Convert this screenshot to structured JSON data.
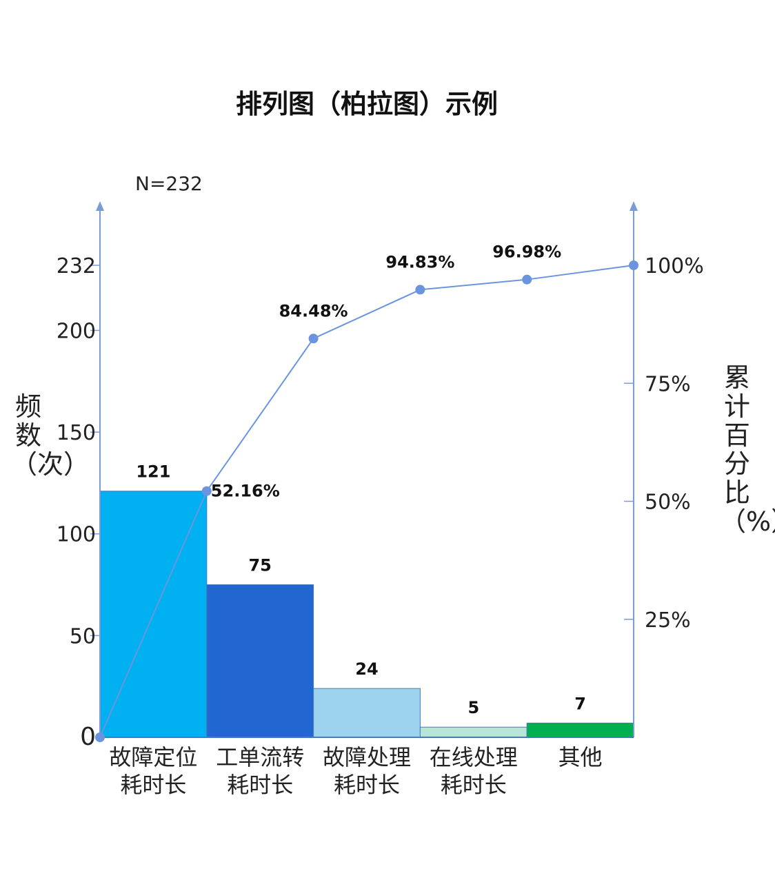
{
  "chart_data": {
    "type": "bar+line",
    "title": "排列图（柏拉图）示例",
    "annotation": "N=232",
    "ylabel_left": "频数（次）",
    "ylabel_right": "累计百分比（%）",
    "categories": [
      [
        "故障定位",
        "耗时长"
      ],
      [
        "工单流转",
        "耗时长"
      ],
      [
        "故障处理",
        "耗时长"
      ],
      [
        "在线处理",
        "耗时长"
      ],
      [
        "其他"
      ]
    ],
    "values": [
      121,
      75,
      24,
      5,
      7
    ],
    "bar_colors": [
      "#00B0F0",
      "#2266D2",
      "#9DD3EE",
      "#B7E6D9",
      "#00B050"
    ],
    "cumulative_percent": [
      0,
      52.16,
      84.48,
      94.83,
      96.98,
      100
    ],
    "cumulative_labels": [
      "",
      "52.16%",
      "84.48%",
      "94.83%",
      "96.98%",
      ""
    ],
    "line_color": "#6A95DE",
    "left_axis": {
      "ylim": [
        0,
        232
      ],
      "ticks": [
        0,
        50,
        100,
        150,
        200,
        232
      ]
    },
    "right_axis": {
      "ylim": [
        0,
        100
      ],
      "ticks": [
        25,
        50,
        75,
        100
      ],
      "tick_labels": [
        "25%",
        "50%",
        "75%",
        "100%"
      ]
    },
    "grid": false
  }
}
